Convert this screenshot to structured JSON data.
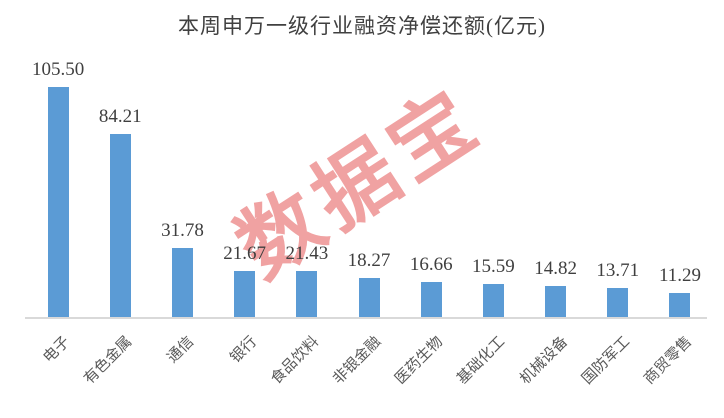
{
  "chart_data": {
    "type": "bar",
    "title": "本周申万一级行业融资净偿还额(亿元)",
    "categories": [
      "电子",
      "有色金属",
      "通信",
      "银行",
      "食品饮料",
      "非银金融",
      "医药生物",
      "基础化工",
      "机械设备",
      "国防军工",
      "商贸零售"
    ],
    "values": [
      105.5,
      84.21,
      31.78,
      21.67,
      21.43,
      18.27,
      16.66,
      15.59,
      14.82,
      13.71,
      11.29
    ],
    "value_label_format": "2-decimals",
    "xlabel": "",
    "ylabel": "",
    "ylim": [
      0,
      110
    ],
    "grid": false,
    "legend": "none",
    "bar_color": "#5B9BD5",
    "axis_line_color": "#D9D9D9",
    "title_color": "#404040",
    "value_label_color": "#3F3F3F",
    "category_label_color": "#595959"
  },
  "watermark": {
    "text": "数据宝",
    "color": "#F0A2A2"
  }
}
